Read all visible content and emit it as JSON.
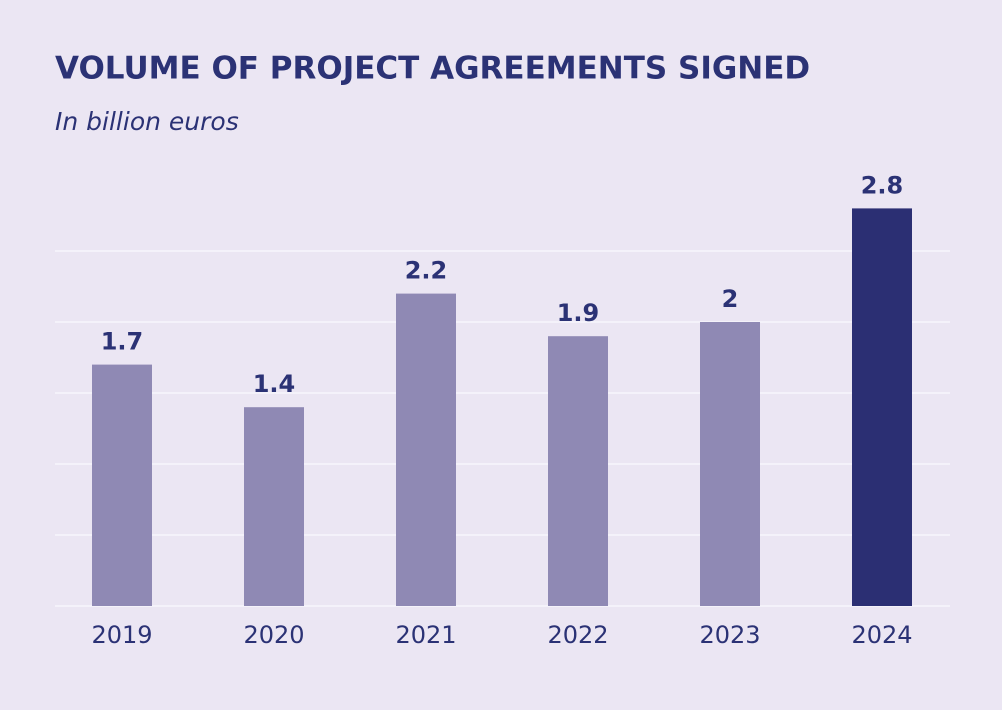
{
  "chart_data": {
    "type": "bar",
    "title": "VOLUME OF PROJECT AGREEMENTS SIGNED",
    "subtitle": "In billion euros",
    "categories": [
      "2019",
      "2020",
      "2021",
      "2022",
      "2023",
      "2024"
    ],
    "values": [
      1.7,
      1.4,
      2.2,
      1.9,
      2,
      2.8
    ],
    "colors": [
      "#8f89b4",
      "#8f89b4",
      "#8f89b4",
      "#8f89b4",
      "#8f89b4",
      "#2b2f73"
    ],
    "ylim": [
      0,
      3
    ],
    "yticks": [
      0,
      0.5,
      1,
      1.5,
      2,
      2.5
    ],
    "grid": true
  }
}
